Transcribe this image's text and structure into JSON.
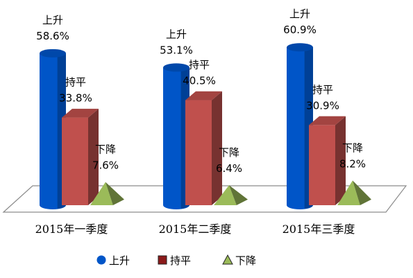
{
  "chart_data": {
    "type": "bar",
    "categories": [
      "2015年一季度",
      "2015年二季度",
      "2015年三季度"
    ],
    "series": [
      {
        "name": "上升",
        "values": [
          58.6,
          53.1,
          60.9
        ],
        "color": "#0055c8",
        "shape": "cylinder"
      },
      {
        "name": "持平",
        "values": [
          33.8,
          40.5,
          30.9
        ],
        "color": "#c0504d",
        "shape": "box"
      },
      {
        "name": "下降",
        "values": [
          7.6,
          6.4,
          8.2
        ],
        "color": "#9bbb59",
        "shape": "pyramid"
      }
    ],
    "value_labels": [
      [
        "58.6%",
        "33.8%",
        "7.6%"
      ],
      [
        "53.1%",
        "40.5%",
        "6.4%"
      ],
      [
        "60.9%",
        "30.9%",
        "8.2%"
      ]
    ],
    "ylim": [
      0,
      70
    ],
    "legend_position": "bottom",
    "grid": false
  }
}
